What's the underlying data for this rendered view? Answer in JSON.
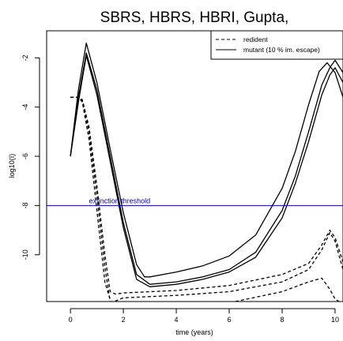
{
  "chart_data": {
    "type": "line",
    "title": "SBRS, HBRS, HBRI, Gupta,",
    "xlabel": "time (years)",
    "ylabel": "log10(I)",
    "xlim": [
      -0.9,
      10.3
    ],
    "ylim": [
      -11.9,
      -0.9
    ],
    "xticks": [
      0,
      2,
      4,
      6,
      8,
      10
    ],
    "yticks": [
      -10,
      -8,
      -6,
      -4,
      -2
    ],
    "legend": {
      "position": "top-right",
      "entries": [
        {
          "label": "redident",
          "style": "dashed"
        },
        {
          "label": "mutant (10 % im. escape)",
          "style": "solid"
        }
      ]
    },
    "annotations": [
      {
        "text": "extinction threshold",
        "y": -8,
        "color": "#0000cc"
      }
    ],
    "hline": {
      "y": -8,
      "color": "#0000cc"
    },
    "series": [
      {
        "style": "solid",
        "color": "#000000",
        "x": [
          0,
          0.3,
          0.6,
          1.0,
          1.5,
          2.0,
          2.5,
          2.8,
          3.0,
          4.0,
          5.0,
          6.0,
          7.0,
          8.0,
          8.5,
          9.0,
          9.4,
          9.7,
          10.0,
          10.3
        ],
        "y": [
          -6.0,
          -3.3,
          -1.4,
          -3.0,
          -5.7,
          -8.3,
          -10.4,
          -10.9,
          -10.9,
          -10.7,
          -10.45,
          -10.05,
          -9.2,
          -7.3,
          -5.8,
          -3.9,
          -2.55,
          -2.2,
          -2.6,
          -3.6
        ]
      },
      {
        "style": "solid",
        "color": "#000000",
        "x": [
          0,
          0.3,
          0.6,
          1.0,
          1.5,
          2.0,
          2.5,
          3.0,
          4.0,
          5.0,
          6.0,
          7.0,
          8.0,
          8.5,
          9.0,
          9.5,
          9.8,
          10.0,
          10.3
        ],
        "y": [
          -6.0,
          -3.6,
          -1.8,
          -3.3,
          -6.0,
          -8.7,
          -10.8,
          -11.2,
          -11.1,
          -10.9,
          -10.6,
          -9.9,
          -8.2,
          -6.8,
          -5.0,
          -3.1,
          -2.4,
          -2.1,
          -2.6
        ]
      },
      {
        "style": "solid",
        "color": "#000000",
        "x": [
          0,
          0.3,
          0.6,
          1.0,
          1.5,
          2.0,
          2.5,
          3.0,
          4.0,
          5.0,
          6.0,
          7.0,
          8.0,
          8.5,
          9.0,
          9.5,
          9.8,
          10.0,
          10.3
        ],
        "y": [
          -6.0,
          -3.8,
          -1.9,
          -3.5,
          -6.2,
          -8.9,
          -11.0,
          -11.3,
          -11.2,
          -11.0,
          -10.7,
          -10.1,
          -8.5,
          -7.1,
          -5.4,
          -3.5,
          -2.7,
          -2.4,
          -3.0
        ]
      },
      {
        "style": "dashed",
        "color": "#000000",
        "x": [
          0,
          0.3,
          0.45,
          0.7,
          1.0,
          1.3,
          1.5,
          1.7,
          2.0,
          4.0,
          6.0,
          8.0,
          9.0,
          9.5,
          9.8,
          10.0,
          10.3
        ],
        "y": [
          -3.6,
          -3.6,
          -3.7,
          -4.8,
          -7.2,
          -10.0,
          -11.5,
          -11.6,
          -11.55,
          -11.45,
          -11.25,
          -10.8,
          -10.35,
          -9.6,
          -9.0,
          -9.3,
          -10.3
        ]
      },
      {
        "style": "dashed",
        "color": "#000000",
        "x": [
          0,
          0.3,
          0.45,
          0.7,
          1.0,
          1.3,
          1.5,
          1.65,
          2.0,
          4.0,
          6.0,
          8.0,
          9.0,
          9.5,
          9.8,
          10.0,
          10.3
        ],
        "y": [
          -3.6,
          -3.6,
          -3.75,
          -5.0,
          -7.6,
          -10.5,
          -11.9,
          -11.9,
          -11.75,
          -11.65,
          -11.5,
          -11.1,
          -10.6,
          -9.8,
          -9.1,
          -9.45,
          -10.6
        ]
      },
      {
        "style": "dashed",
        "color": "#000000",
        "x": [
          0,
          0.3,
          0.45,
          0.7,
          1.0,
          1.3,
          1.55,
          2.0,
          4.0,
          6.0,
          8.0,
          9.0,
          9.5,
          9.8,
          10.0,
          10.3
        ],
        "y": [
          -3.6,
          -3.6,
          -3.8,
          -5.3,
          -8.2,
          -11.1,
          -12.0,
          -12.0,
          -12.0,
          -11.95,
          -11.5,
          -11.1,
          -10.95,
          -11.4,
          -11.8,
          -12.0
        ]
      }
    ]
  }
}
